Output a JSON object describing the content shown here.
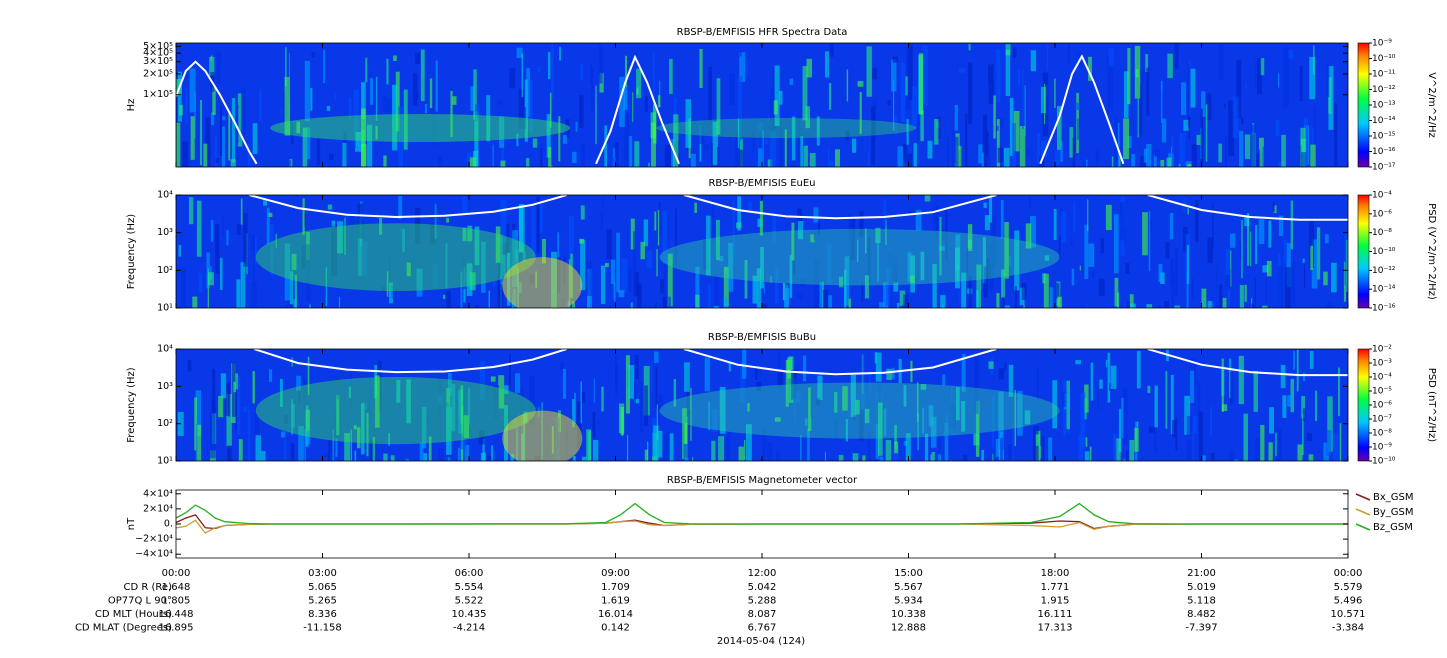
{
  "chart_data": [
    {
      "type": "spectrogram",
      "title": "RBSP-B/EMFISIS  HFR Spectra Data",
      "ylabel": "Hz",
      "ylog": true,
      "ylim": [
        9000,
        560000
      ],
      "yticks": [
        {
          "value": 100000,
          "label": "1×10⁵"
        },
        {
          "value": 200000,
          "label": "2×10⁵"
        },
        {
          "value": 300000,
          "label": "3×10⁵"
        },
        {
          "value": 400000,
          "label": "4×10⁵"
        },
        {
          "value": 500000,
          "label": "5×10⁵"
        }
      ],
      "zlabel": "V^2/m^2/Hz",
      "zlog": true,
      "zlim": [
        1e-17,
        1e-09
      ],
      "zticks": [
        {
          "value": 1e-17,
          "label": "10⁻¹⁷"
        },
        {
          "value": 1e-16,
          "label": "10⁻¹⁶"
        },
        {
          "value": 1e-15,
          "label": "10⁻¹⁵"
        },
        {
          "value": 1e-14,
          "label": "10⁻¹⁴"
        },
        {
          "value": 1e-13,
          "label": "10⁻¹³"
        },
        {
          "value": 1e-12,
          "label": "10⁻¹²"
        },
        {
          "value": 1e-11,
          "label": "10⁻¹¹"
        },
        {
          "value": 1e-10,
          "label": "10⁻¹⁰"
        },
        {
          "value": 1e-09,
          "label": "10⁻⁹"
        }
      ],
      "lines": [
        {
          "color": "#ffffff",
          "x": [
            0,
            0.2,
            0.4,
            0.6,
            0.9,
            1.2,
            1.5,
            1.65,
            5,
            8.6,
            8.9,
            9.2,
            9.4,
            9.65,
            9.95,
            10.3,
            14,
            17.7,
            18.1,
            18.35,
            18.55,
            18.8,
            19.1,
            19.4
          ],
          "values": [
            95000,
            220000,
            300000,
            220000,
            100000,
            40000,
            15000,
            10000,
            null,
            10000,
            30000,
            150000,
            350000,
            150000,
            40000,
            10000,
            null,
            10000,
            50000,
            200000,
            360000,
            150000,
            40000,
            10000
          ]
        }
      ]
    },
    {
      "type": "spectrogram",
      "title": "RBSP-B/EMFISIS  EuEu",
      "ylabel": "Frequency (Hz)",
      "ylog": true,
      "ylim": [
        10,
        10000
      ],
      "yticks": [
        {
          "value": 10,
          "label": "10¹"
        },
        {
          "value": 100,
          "label": "10²"
        },
        {
          "value": 1000,
          "label": "10³"
        },
        {
          "value": 10000,
          "label": "10⁴"
        }
      ],
      "zlabel": "PSD (V^2/m^2/Hz)",
      "zlog": true,
      "zlim": [
        1e-16,
        0.0001
      ],
      "zticks": [
        {
          "value": 1e-16,
          "label": "10⁻¹⁶"
        },
        {
          "value": 1e-14,
          "label": "10⁻¹⁴"
        },
        {
          "value": 1e-12,
          "label": "10⁻¹²"
        },
        {
          "value": 1e-10,
          "label": "10⁻¹⁰"
        },
        {
          "value": 1e-08,
          "label": "10⁻⁸"
        },
        {
          "value": 1e-06,
          "label": "10⁻⁶"
        },
        {
          "value": 0.0001,
          "label": "10⁻⁴"
        }
      ],
      "lines": [
        {
          "color": "#ffffff",
          "x": [
            1.5,
            2.5,
            3.5,
            4.5,
            5.5,
            6.5,
            7.3,
            8,
            9,
            10.4,
            11.5,
            12.5,
            13.5,
            14.5,
            15.5,
            16.8,
            18,
            19.9,
            21,
            22,
            23,
            24
          ],
          "values": [
            10000,
            4500,
            3000,
            2600,
            2800,
            3600,
            5500,
            10000,
            null,
            10000,
            4000,
            2700,
            2400,
            2600,
            3500,
            10000,
            null,
            10000,
            4000,
            2600,
            2200,
            2200
          ]
        }
      ]
    },
    {
      "type": "spectrogram",
      "title": "RBSP-B/EMFISIS  BuBu",
      "ylabel": "Frequency (Hz)",
      "ylog": true,
      "ylim": [
        10,
        10000
      ],
      "yticks": [
        {
          "value": 10,
          "label": "10¹"
        },
        {
          "value": 100,
          "label": "10²"
        },
        {
          "value": 1000,
          "label": "10³"
        },
        {
          "value": 10000,
          "label": "10⁴"
        }
      ],
      "zlabel": "PSD (nT^2/Hz)",
      "zlog": true,
      "zlim": [
        1e-10,
        0.01
      ],
      "zticks": [
        {
          "value": 1e-10,
          "label": "10⁻¹⁰"
        },
        {
          "value": 1e-09,
          "label": "10⁻⁹"
        },
        {
          "value": 1e-08,
          "label": "10⁻⁸"
        },
        {
          "value": 1e-07,
          "label": "10⁻⁷"
        },
        {
          "value": 1e-06,
          "label": "10⁻⁶"
        },
        {
          "value": 1e-05,
          "label": "10⁻⁵"
        },
        {
          "value": 0.0001,
          "label": "10⁻⁴"
        },
        {
          "value": 0.001,
          "label": "10⁻³"
        },
        {
          "value": 0.01,
          "label": "10⁻²"
        }
      ],
      "lines": [
        {
          "color": "#ffffff",
          "x": [
            1.6,
            2.5,
            3.5,
            4.5,
            5.5,
            6.5,
            7.3,
            8,
            9,
            10.4,
            11.5,
            12.5,
            13.5,
            14.5,
            15.5,
            16.8,
            18,
            19.9,
            21,
            22,
            23,
            24
          ],
          "values": [
            10000,
            4200,
            2800,
            2400,
            2500,
            3300,
            5200,
            10000,
            null,
            10000,
            3800,
            2500,
            2100,
            2300,
            3200,
            10000,
            null,
            10000,
            3800,
            2400,
            2000,
            2000
          ]
        }
      ]
    },
    {
      "type": "line",
      "title": "RBSP-B/EMFISIS  Magnetometer vector",
      "ylabel": "nT",
      "ylim": [
        -45000,
        45000
      ],
      "yticks": [
        {
          "value": -40000,
          "label": "−4×10⁴"
        },
        {
          "value": -20000,
          "label": "−2×10⁴"
        },
        {
          "value": 0,
          "label": "0."
        },
        {
          "value": 20000,
          "label": "2×10⁴"
        },
        {
          "value": 40000,
          "label": "4×10⁴"
        }
      ],
      "x": [
        0,
        0.2,
        0.4,
        0.6,
        0.8,
        1,
        1.5,
        2,
        4,
        8,
        8.8,
        9.1,
        9.4,
        9.7,
        10,
        10.5,
        12,
        16,
        17.5,
        18.1,
        18.5,
        18.8,
        19.1,
        19.6,
        21,
        24
      ],
      "series": [
        {
          "name": "Bx_GSM",
          "color": "#8b1a1a",
          "values": [
            2000,
            8000,
            12000,
            -5000,
            -6000,
            -2000,
            -500,
            0,
            0,
            0,
            1000,
            3000,
            5000,
            1000,
            -2000,
            -500,
            0,
            0,
            1000,
            4000,
            3000,
            -6000,
            -3000,
            -500,
            0,
            0
          ]
        },
        {
          "name": "By_GSM",
          "color": "#c8a030",
          "values": [
            -5000,
            -3000,
            5000,
            -12000,
            -5000,
            -2000,
            -500,
            0,
            0,
            0,
            1000,
            3000,
            4000,
            -1000,
            -2000,
            -500,
            0,
            0,
            -2000,
            -4000,
            2000,
            -7000,
            -3000,
            -500,
            0,
            0
          ]
        },
        {
          "name": "Bz_GSM",
          "color": "#22b022",
          "values": [
            8000,
            15000,
            25000,
            18000,
            8000,
            3000,
            500,
            0,
            0,
            200,
            2000,
            12000,
            27000,
            12000,
            2000,
            300,
            0,
            0,
            2000,
            10000,
            27000,
            12000,
            3000,
            400,
            0,
            0
          ]
        }
      ],
      "legend": "right"
    }
  ],
  "time_axis": {
    "xlim": [
      0,
      24
    ],
    "xticks": [
      {
        "value": 0,
        "label": "00:00"
      },
      {
        "value": 3,
        "label": "03:00"
      },
      {
        "value": 6,
        "label": "06:00"
      },
      {
        "value": 9,
        "label": "09:00"
      },
      {
        "value": 12,
        "label": "12:00"
      },
      {
        "value": 15,
        "label": "15:00"
      },
      {
        "value": 18,
        "label": "18:00"
      },
      {
        "value": 21,
        "label": "21:00"
      },
      {
        "value": 24,
        "label": "00:00"
      }
    ]
  },
  "ephemeris": [
    {
      "label": "CD R (Re)",
      "values": [
        1.648,
        5.065,
        5.554,
        1.709,
        5.042,
        5.567,
        1.771,
        5.019,
        5.579
      ]
    },
    {
      "label": "OP77Q L 90°",
      "values": [
        1.805,
        5.265,
        5.522,
        1.619,
        5.288,
        5.934,
        1.915,
        5.118,
        5.496
      ]
    },
    {
      "label": "CD MLT (Hours)",
      "values": [
        16.448,
        8.336,
        10.435,
        16.014,
        8.087,
        10.338,
        16.111,
        8.482,
        10.571
      ]
    },
    {
      "label": "CD MLAT (Degrees)",
      "values": [
        16.895,
        -11.158,
        -4.214,
        0.142,
        6.767,
        12.888,
        17.313,
        -7.397,
        -3.384
      ]
    }
  ],
  "date": "2014-05-04 (124)"
}
